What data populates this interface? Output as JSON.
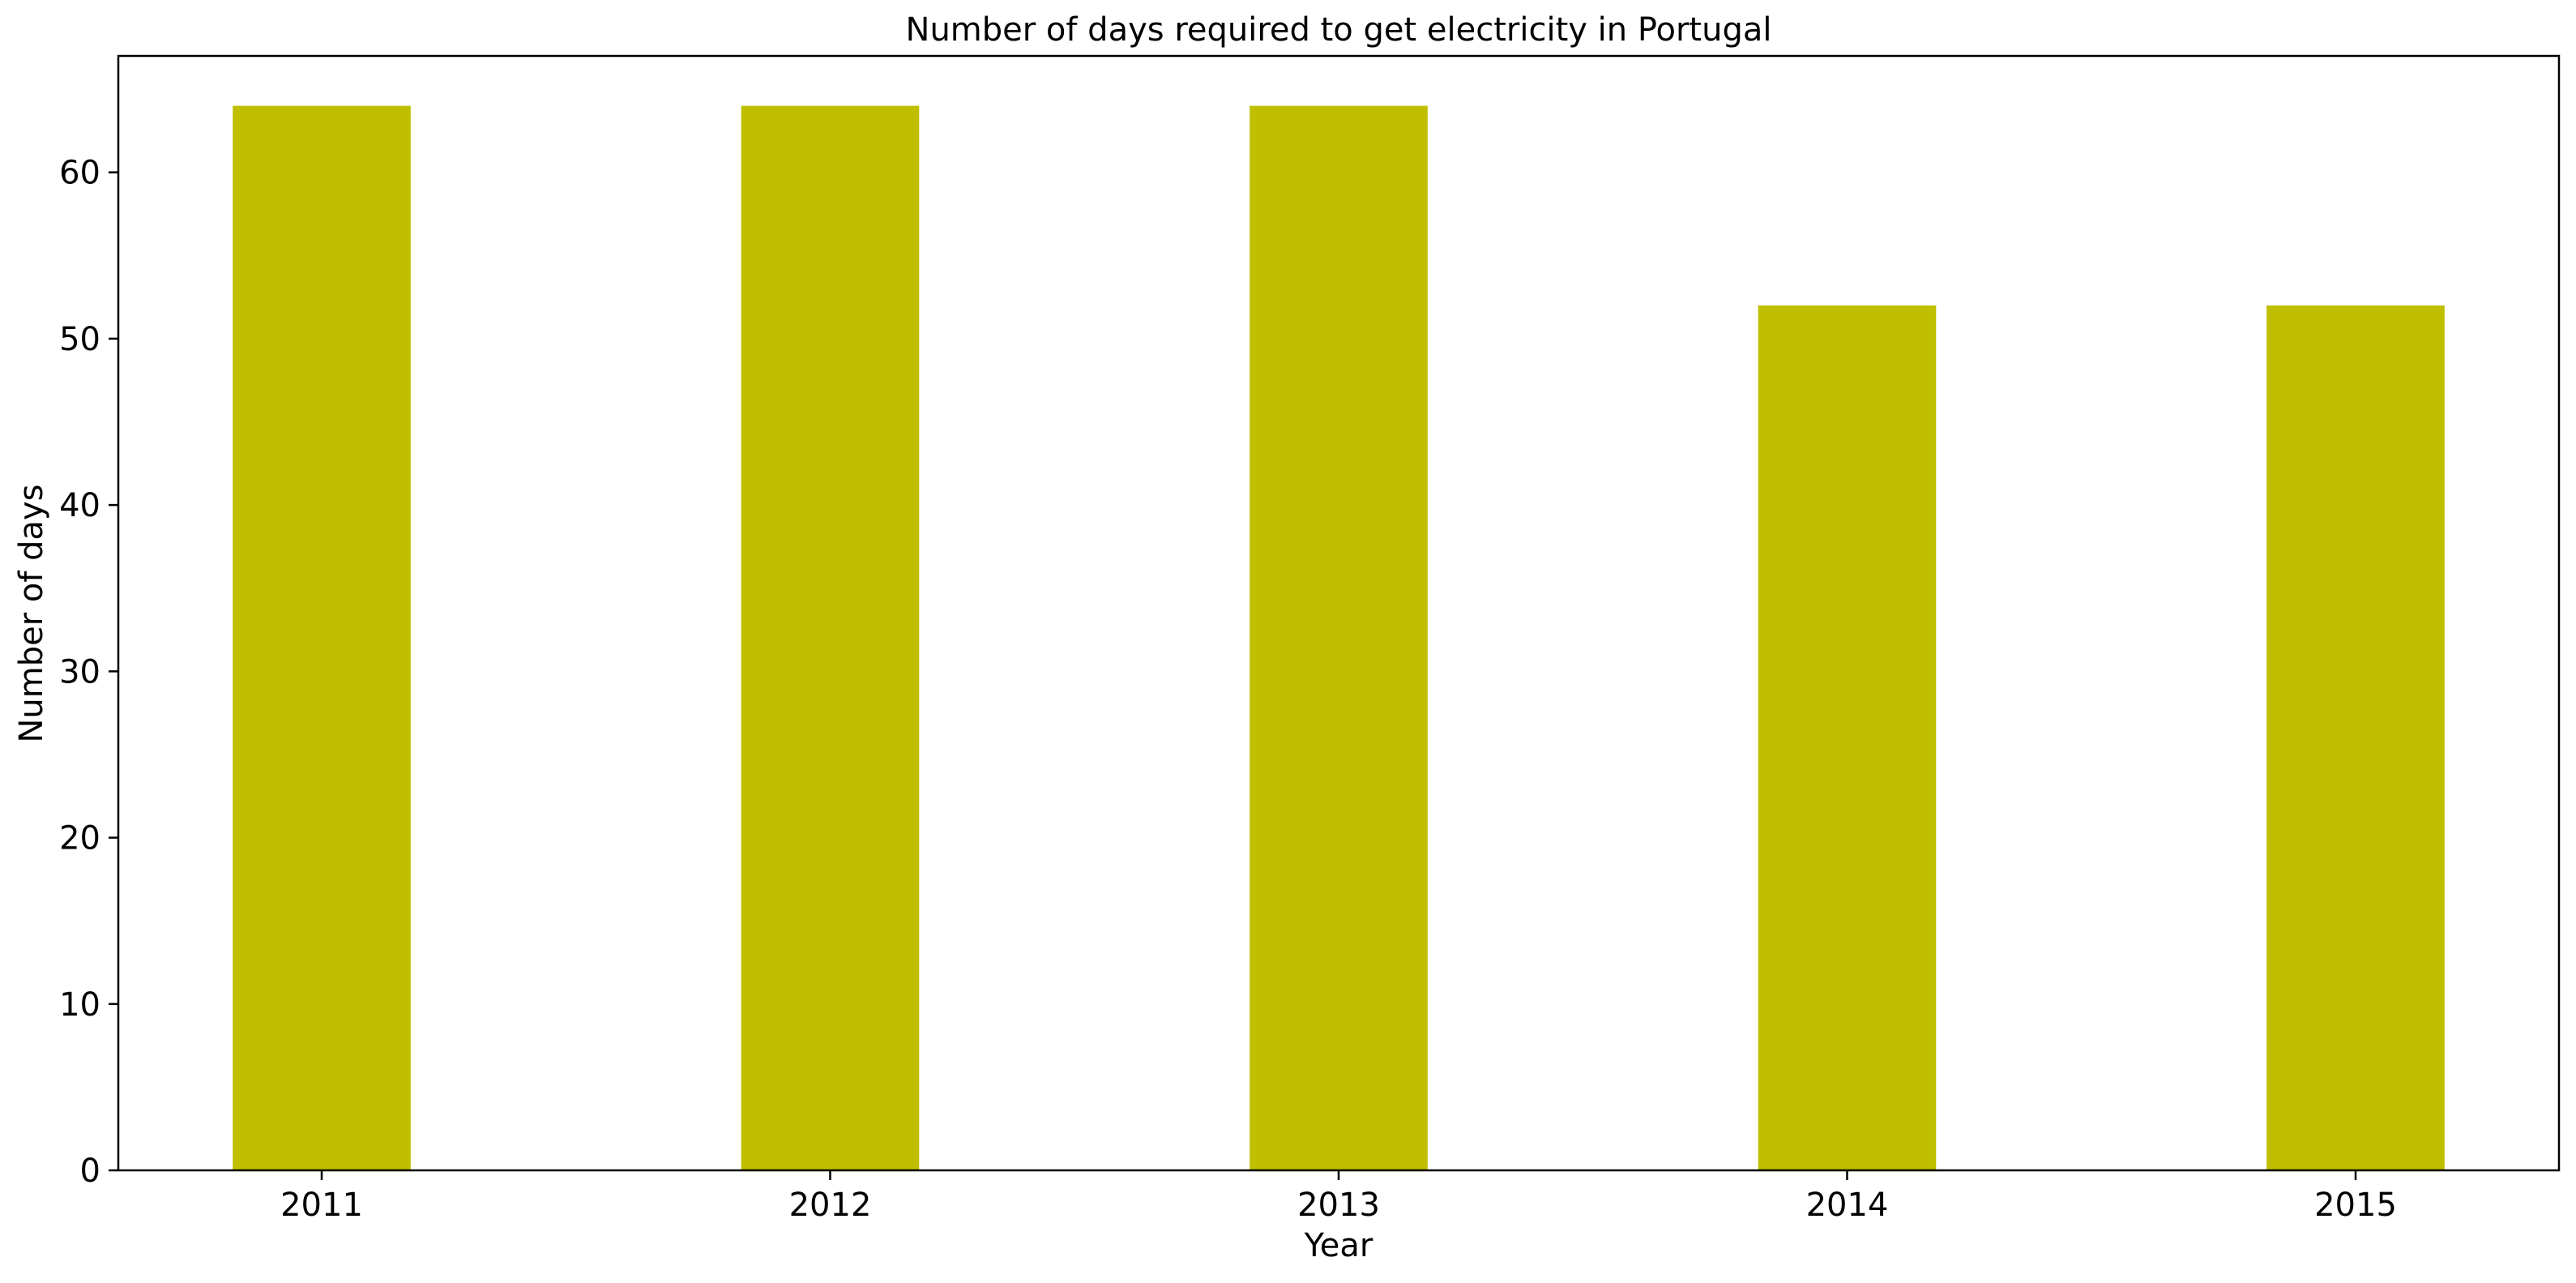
{
  "chart_data": {
    "type": "bar",
    "title": "Number of days required to get electricity in Portugal",
    "xlabel": "Year",
    "ylabel": "Number of days",
    "categories": [
      "2011",
      "2012",
      "2013",
      "2014",
      "2015"
    ],
    "values": [
      64,
      64,
      64,
      52,
      52
    ],
    "ylim": [
      0,
      67
    ],
    "yticks": [
      0,
      10,
      20,
      30,
      40,
      50,
      60
    ],
    "bar_color": "#bfbf00",
    "grid": false,
    "legend": "none"
  }
}
